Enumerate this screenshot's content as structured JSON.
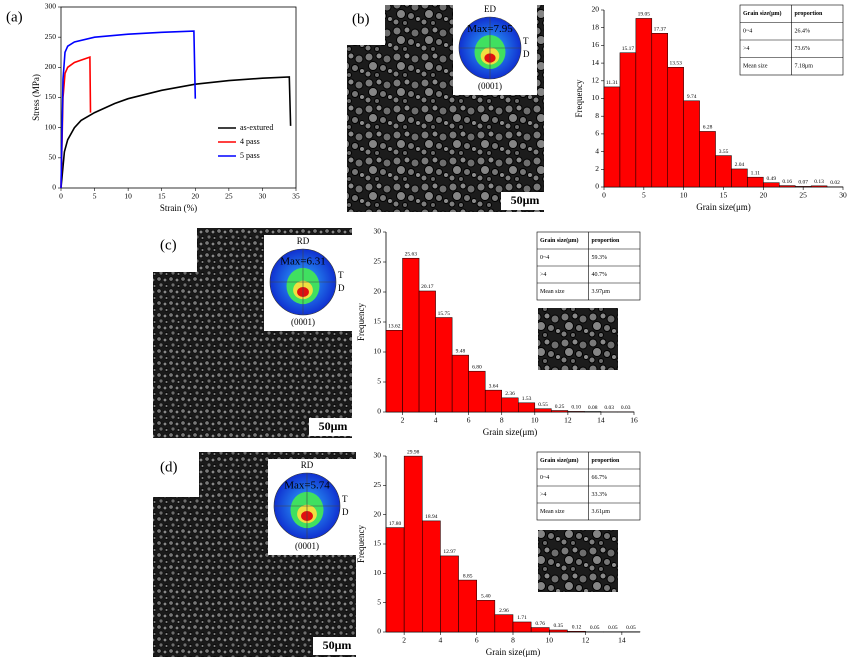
{
  "chart_data": [
    {
      "type": "line",
      "xlabel": "Strain (%)",
      "ylabel": "Stress (MPa)",
      "xlim": [
        0,
        35
      ],
      "ylim": [
        0,
        300
      ],
      "xticks": [
        0,
        5,
        10,
        15,
        20,
        25,
        30,
        35
      ],
      "yticks": [
        0,
        50,
        100,
        150,
        200,
        250,
        300
      ],
      "legend": "lower right",
      "series": [
        {
          "name": "as-extured",
          "color": "#000000",
          "x": [
            0,
            0.5,
            1,
            2,
            3,
            5,
            8,
            10,
            15,
            20,
            25,
            30,
            34,
            34.2
          ],
          "values": [
            0,
            60,
            80,
            100,
            112,
            125,
            140,
            148,
            162,
            172,
            178,
            182,
            184,
            103
          ]
        },
        {
          "name": "4 pass",
          "color": "#ff0000",
          "x": [
            0,
            0.3,
            0.6,
            1,
            2,
            3,
            4.3,
            4.4
          ],
          "values": [
            0,
            150,
            190,
            200,
            208,
            212,
            217,
            125
          ]
        },
        {
          "name": "5 pass",
          "color": "#0000ff",
          "x": [
            0,
            0.3,
            0.6,
            1,
            2,
            5,
            10,
            15,
            19.8,
            20
          ],
          "values": [
            0,
            180,
            225,
            235,
            242,
            250,
            255,
            258,
            260,
            148
          ]
        }
      ]
    },
    {
      "type": "histogram",
      "xlabel": "Grain size(μm)",
      "ylabel": "Frequency",
      "color": "#ff0000",
      "xlim": [
        0,
        30
      ],
      "ylim": [
        0,
        20
      ],
      "xticks": [
        0,
        5,
        10,
        15,
        20,
        25,
        30
      ],
      "yticks": [
        0,
        2,
        4,
        6,
        8,
        10,
        12,
        14,
        16,
        18,
        20
      ],
      "bins": [
        0,
        2,
        4,
        6,
        8,
        10,
        12,
        14,
        16,
        18,
        20,
        22,
        24,
        26,
        28,
        30
      ],
      "values": [
        11.31,
        15.17,
        19.05,
        17.37,
        13.53,
        9.74,
        6.28,
        3.55,
        2.04,
        1.11,
        0.49,
        0.16,
        0.07,
        0.13,
        0.02
      ],
      "value_labels": [
        "11.31",
        "15.17",
        "19.05",
        "17.37",
        "13.53",
        "9.74",
        "6.28",
        "3.55",
        "2.04",
        "1.11",
        "0.49",
        "0.16",
        "0.07",
        "0.13",
        "0.02"
      ]
    },
    {
      "type": "histogram",
      "xlabel": "Grain size(μm)",
      "ylabel": "Frequency",
      "color": "#ff0000",
      "xlim": [
        1,
        16
      ],
      "ylim": [
        0,
        30
      ],
      "xticks": [
        2,
        4,
        6,
        8,
        10,
        12,
        14,
        16
      ],
      "yticks": [
        0,
        5,
        10,
        15,
        20,
        25,
        30
      ],
      "bins": [
        1,
        2,
        3,
        4,
        5,
        6,
        7,
        8,
        9,
        10,
        11,
        12,
        13,
        14,
        15,
        16
      ],
      "values": [
        13.62,
        25.63,
        20.17,
        15.75,
        9.48,
        6.8,
        3.64,
        2.36,
        1.53,
        0.55,
        0.25,
        0.1,
        0.08,
        0.03,
        0.03
      ],
      "value_labels": [
        "13.62",
        "25.63",
        "20.17",
        "15.75",
        "9.48",
        "6.80",
        "3.64",
        "2.36",
        "1.53",
        "0.55",
        "0.25",
        "0.10",
        "0.08",
        "0.03",
        "0.03"
      ]
    },
    {
      "type": "histogram",
      "xlabel": "Grain size(μm)",
      "ylabel": "Frequency",
      "color": "#ff0000",
      "xlim": [
        1,
        15
      ],
      "ylim": [
        0,
        30
      ],
      "xticks": [
        2,
        4,
        6,
        8,
        10,
        12,
        14
      ],
      "yticks": [
        0,
        5,
        10,
        15,
        20,
        25,
        30
      ],
      "bins": [
        1,
        2,
        3,
        4,
        5,
        6,
        7,
        8,
        9,
        10,
        11,
        12,
        13,
        14,
        15
      ],
      "values": [
        17.8,
        29.98,
        18.94,
        12.97,
        8.85,
        5.4,
        2.96,
        1.71,
        0.76,
        0.35,
        0.12,
        0.05,
        0.05,
        0.05
      ],
      "value_labels": [
        "17.80",
        "29.98",
        "18.94",
        "12.97",
        "8.85",
        "5.40",
        "2.96",
        "1.71",
        "0.76",
        "0.35",
        "0.12",
        "0.05",
        "0.05",
        "0.05"
      ]
    }
  ],
  "panels": [
    {
      "label": "(a)"
    },
    {
      "label": "(b)",
      "scale_bar": "50μm",
      "pole_figure": {
        "direction": "ED",
        "max": "Max=7.95",
        "side": [
          "T",
          "D"
        ],
        "plane": "(0001)"
      },
      "table": {
        "header": [
          "Grain size(μm)",
          "proportion"
        ],
        "rows": [
          [
            "0~4",
            "26.4%"
          ],
          [
            ">4",
            "73.6%"
          ],
          [
            "Mean size",
            "7.18μm"
          ]
        ]
      }
    },
    {
      "label": "(c)",
      "scale_bar": "50μm",
      "pole_figure": {
        "direction": "RD",
        "max": "Max=6.31",
        "side": [
          "T",
          "D"
        ],
        "plane": "(0001)"
      },
      "table": {
        "header": [
          "Grain size(μm)",
          "proportion"
        ],
        "rows": [
          [
            "0~4",
            "59.3%"
          ],
          [
            ">4",
            "40.7%"
          ],
          [
            "Mean size",
            "3.97μm"
          ]
        ]
      }
    },
    {
      "label": "(d)",
      "scale_bar": "50μm",
      "pole_figure": {
        "direction": "RD",
        "max": "Max=5.74",
        "side": [
          "T",
          "D"
        ],
        "plane": "(0001)"
      },
      "table": {
        "header": [
          "Grain size(μm)",
          "proportion"
        ],
        "rows": [
          [
            "0~4",
            "66.7%"
          ],
          [
            ">4",
            "33.3%"
          ],
          [
            "Mean size",
            "3.61μm"
          ]
        ]
      }
    }
  ]
}
